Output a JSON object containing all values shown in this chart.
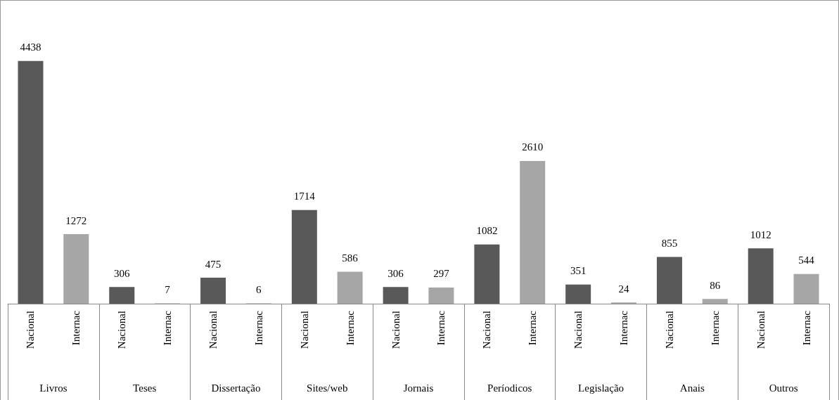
{
  "chart_data": {
    "type": "bar",
    "categories": [
      "Livros",
      "Teses",
      "Dissertação",
      "Sites/web",
      "Jornais",
      "Períodicos",
      "Legislação",
      "Anais",
      "Outros"
    ],
    "series": [
      {
        "name": "Nacional",
        "color": "#595959",
        "values": [
          4438,
          306,
          475,
          1714,
          306,
          1082,
          351,
          855,
          1012
        ]
      },
      {
        "name": "Internac",
        "color": "#a6a6a6",
        "values": [
          1272,
          7,
          6,
          586,
          297,
          2610,
          24,
          86,
          544
        ]
      }
    ],
    "data_labels": true,
    "legend": false,
    "grid": false
  }
}
